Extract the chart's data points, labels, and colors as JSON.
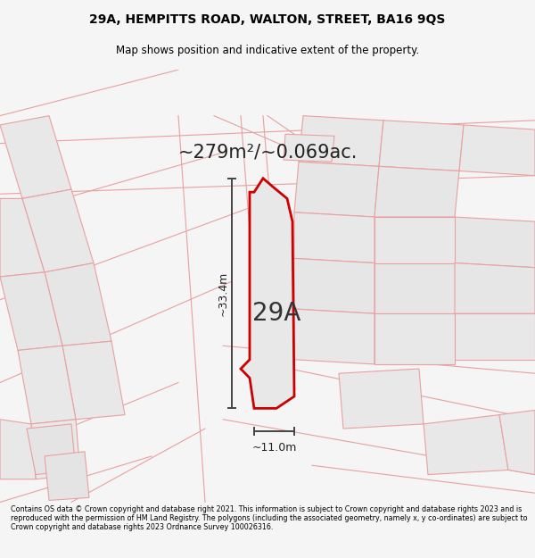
{
  "title_line1": "29A, HEMPITTS ROAD, WALTON, STREET, BA16 9QS",
  "title_line2": "Map shows position and indicative extent of the property.",
  "area_label": "~279m²/~0.069ac.",
  "label_29a": "29A",
  "dim_height": "~33.4m",
  "dim_width": "~11.0m",
  "footer_text": "Contains OS data © Crown copyright and database right 2021. This information is subject to Crown copyright and database rights 2023 and is reproduced with the permission of HM Land Registry. The polygons (including the associated geometry, namely x, y co-ordinates) are subject to Crown copyright and database rights 2023 Ordnance Survey 100026316.",
  "bg_color": "#f5f5f5",
  "map_bg": "#ffffff",
  "plot_fill": "#e8e8e8",
  "plot_outline": "#cc0000",
  "cadastral_fill": "#e0e0e0",
  "cadastral_stroke": "#e8a0a0",
  "dim_color": "#444444",
  "title_fontsize": 10,
  "subtitle_fontsize": 8.5,
  "area_fontsize": 15,
  "label_fontsize": 20,
  "dim_fontsize": 9,
  "footer_fontsize": 5.8
}
